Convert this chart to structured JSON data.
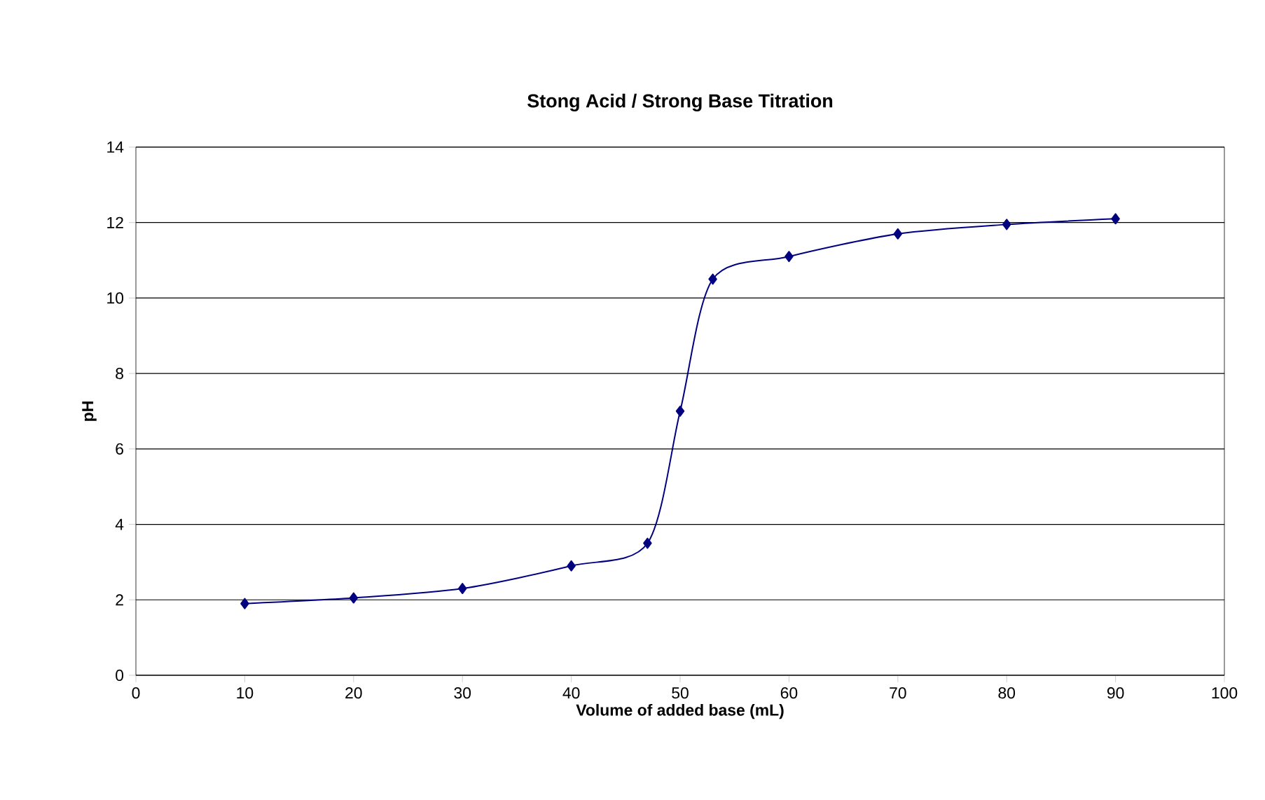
{
  "chart_data": {
    "type": "line",
    "title": "Stong Acid / Strong Base Titration",
    "xlabel": "Volume of added base (mL)",
    "ylabel": "pH",
    "x": [
      10,
      20,
      30,
      40,
      47,
      50,
      53,
      60,
      70,
      80,
      90
    ],
    "series": [
      {
        "color": "#000080",
        "values": [
          1.9,
          2.05,
          2.3,
          2.9,
          3.5,
          7,
          10.5,
          11.1,
          11.7,
          11.95,
          12.1
        ]
      }
    ],
    "xlim": [
      0,
      100
    ],
    "xticks": [
      0,
      10,
      20,
      30,
      40,
      50,
      60,
      70,
      80,
      90,
      100
    ],
    "ylim": [
      0,
      14
    ],
    "yticks": [
      0,
      2,
      4,
      6,
      8,
      10,
      12,
      14
    ],
    "grid": "y",
    "marker": "diamond",
    "line_style": "solid"
  }
}
